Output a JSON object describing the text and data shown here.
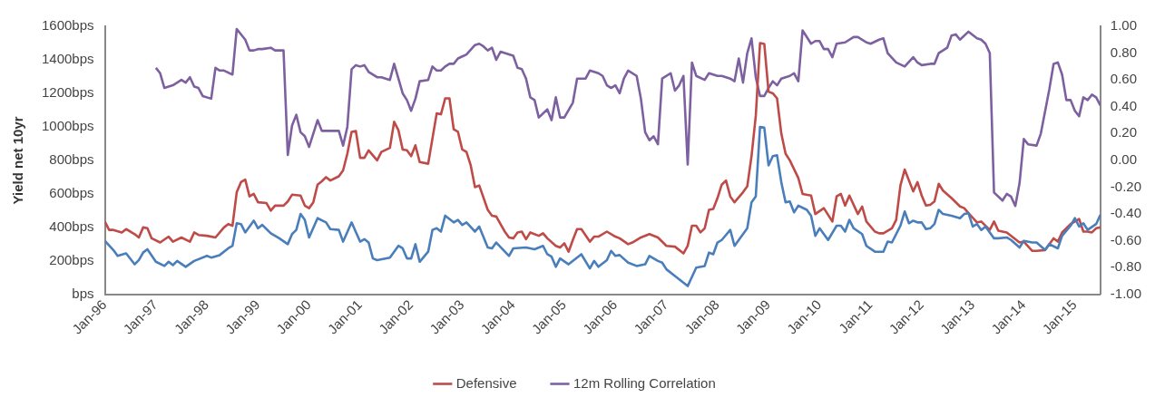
{
  "chart_data": {
    "type": "line",
    "ylabel": "Yield net 10yr",
    "legend": "bottom",
    "xlim": [
      "1996-01",
      "2015-07"
    ],
    "xticks": [
      {
        "value": "1996-01",
        "label": "Jan-96"
      },
      {
        "value": "1997-01",
        "label": "Jan-97"
      },
      {
        "value": "1998-01",
        "label": "Jan-98"
      },
      {
        "value": "1999-01",
        "label": "Jan-99"
      },
      {
        "value": "2000-01",
        "label": "Jan-00"
      },
      {
        "value": "2001-01",
        "label": "Jan-01"
      },
      {
        "value": "2002-01",
        "label": "Jan-02"
      },
      {
        "value": "2003-01",
        "label": "Jan-03"
      },
      {
        "value": "2004-01",
        "label": "Jan-04"
      },
      {
        "value": "2005-01",
        "label": "Jan-05"
      },
      {
        "value": "2006-01",
        "label": "Jan-06"
      },
      {
        "value": "2007-01",
        "label": "Jan-07"
      },
      {
        "value": "2008-01",
        "label": "Jan-08"
      },
      {
        "value": "2009-01",
        "label": "Jan-09"
      },
      {
        "value": "2010-01",
        "label": "Jan-10"
      },
      {
        "value": "2011-01",
        "label": "Jan-11"
      },
      {
        "value": "2012-01",
        "label": "Jan-12"
      },
      {
        "value": "2013-01",
        "label": "Jan-13"
      },
      {
        "value": "2014-01",
        "label": "Jan-14"
      },
      {
        "value": "2015-01",
        "label": "Jan-15"
      }
    ],
    "ylim": [
      0,
      1600
    ],
    "yticks": [
      {
        "value": 0,
        "label": "bps"
      },
      {
        "value": 200,
        "label": "200bps"
      },
      {
        "value": 400,
        "label": "400bps"
      },
      {
        "value": 600,
        "label": "600bps"
      },
      {
        "value": 800,
        "label": "800bps"
      },
      {
        "value": 1000,
        "label": "1000bps"
      },
      {
        "value": 1200,
        "label": "1200bps"
      },
      {
        "value": 1400,
        "label": "1400bps"
      },
      {
        "value": 1600,
        "label": "1600bps"
      }
    ],
    "y2lim": [
      -1,
      1
    ],
    "y2ticks": [
      {
        "value": 1,
        "label": "1.00"
      },
      {
        "value": 0.8,
        "label": "0.80"
      },
      {
        "value": 0.6,
        "label": "0.60"
      },
      {
        "value": 0.4,
        "label": "0.40"
      },
      {
        "value": 0.2,
        "label": "0.20"
      },
      {
        "value": 0,
        "label": "0.00"
      },
      {
        "value": -0.2,
        "label": "-0.20"
      },
      {
        "value": -0.4,
        "label": "-0.40"
      },
      {
        "value": -0.6,
        "label": "-0.60"
      },
      {
        "value": -0.8,
        "label": "-0.80"
      },
      {
        "value": -1,
        "label": "-1.00"
      }
    ],
    "series": [
      {
        "color": "#4a7ebb",
        "x": [
          "1996-01",
          "1996-03",
          "1996-04",
          "1996-06",
          "1996-08",
          "1996-09",
          "1996-10",
          "1996-11",
          "1997-01",
          "1997-03",
          "1997-04",
          "1997-05",
          "1997-06",
          "1997-08",
          "1997-10",
          "1998-01",
          "1998-02",
          "1998-04",
          "1998-06",
          "1998-07",
          "1998-08",
          "1998-09",
          "1998-10",
          "1998-12",
          "1999-01",
          "1999-02",
          "1999-04",
          "1999-06",
          "1999-08",
          "1999-09",
          "1999-10",
          "1999-11",
          "1999-12",
          "2000-01",
          "2000-03",
          "2000-05",
          "2000-06",
          "2000-08",
          "2000-09",
          "2000-11",
          "2001-01",
          "2001-02",
          "2001-03",
          "2001-04",
          "2001-05",
          "2001-08",
          "2001-10",
          "2001-11",
          "2001-12",
          "2002-01",
          "2002-02",
          "2002-03",
          "2002-05",
          "2002-06",
          "2002-07",
          "2002-08",
          "2002-09",
          "2002-11",
          "2002-12",
          "2003-01",
          "2003-02",
          "2003-04",
          "2003-05",
          "2003-07",
          "2003-08",
          "2003-09",
          "2003-12",
          "2004-01",
          "2004-04",
          "2004-06",
          "2004-08",
          "2004-09",
          "2004-10",
          "2004-11",
          "2004-12",
          "2005-02",
          "2005-05",
          "2005-07",
          "2005-08",
          "2005-09",
          "2005-11",
          "2005-12",
          "2006-01",
          "2006-02",
          "2006-04",
          "2006-06",
          "2006-08",
          "2006-09",
          "2006-11",
          "2006-12",
          "2007-01",
          "2007-03",
          "2007-06",
          "2007-08",
          "2007-10",
          "2007-11",
          "2007-12",
          "2008-01",
          "2008-02",
          "2008-04",
          "2008-05",
          "2008-08",
          "2008-09",
          "2008-10",
          "2008-11",
          "2008-12",
          "2009-01",
          "2009-02",
          "2009-03",
          "2009-04",
          "2009-05",
          "2009-06",
          "2009-07",
          "2009-08",
          "2009-10",
          "2009-11",
          "2009-12",
          "2010-01",
          "2010-03",
          "2010-05",
          "2010-06",
          "2010-07",
          "2010-08",
          "2010-09",
          "2010-11",
          "2010-12",
          "2011-02",
          "2011-04",
          "2011-05",
          "2011-06",
          "2011-08",
          "2011-09",
          "2011-10",
          "2011-11",
          "2011-12",
          "2012-01",
          "2012-02",
          "2012-03",
          "2012-04",
          "2012-05",
          "2012-06",
          "2012-08",
          "2012-10",
          "2012-11",
          "2012-12",
          "2013-01",
          "2013-02",
          "2013-03",
          "2013-04",
          "2013-06",
          "2013-07",
          "2013-09",
          "2013-10",
          "2013-12",
          "2014-01",
          "2014-03",
          "2014-04",
          "2014-06",
          "2014-07",
          "2014-09",
          "2014-10",
          "2014-12",
          "2015-01",
          "2015-02",
          "2015-03",
          "2015-04",
          "2015-06",
          "2015-07"
        ],
        "values": [
          320,
          265,
          230,
          245,
          180,
          205,
          250,
          270,
          195,
          170,
          195,
          175,
          200,
          165,
          200,
          230,
          220,
          235,
          275,
          290,
          425,
          420,
          370,
          440,
          395,
          415,
          365,
          335,
          300,
          360,
          385,
          480,
          445,
          340,
          455,
          430,
          390,
          385,
          315,
          430,
          315,
          330,
          310,
          215,
          205,
          220,
          290,
          275,
          215,
          215,
          300,
          195,
          255,
          385,
          395,
          375,
          470,
          430,
          445,
          415,
          430,
          375,
          405,
          280,
          275,
          310,
          230,
          275,
          280,
          270,
          290,
          240,
          225,
          165,
          215,
          180,
          240,
          155,
          200,
          165,
          205,
          260,
          230,
          235,
          190,
          170,
          180,
          230,
          200,
          190,
          150,
          110,
          50,
          160,
          170,
          250,
          240,
          310,
          325,
          385,
          290,
          395,
          550,
          585,
          1000,
          995,
          770,
          825,
          830,
          670,
          550,
          555,
          490,
          530,
          505,
          470,
          350,
          395,
          325,
          410,
          410,
          375,
          445,
          395,
          360,
          290,
          255,
          255,
          315,
          310,
          410,
          495,
          425,
          440,
          430,
          430,
          390,
          395,
          420,
          505,
          480,
          470,
          455,
          480,
          485,
          405,
          420,
          385,
          405,
          335,
          335,
          340,
          325,
          280,
          320,
          310,
          310,
          265,
          300,
          275,
          350,
          410,
          455,
          405,
          425,
          385,
          420,
          475
        ]
      },
      {
        "name": "Defensive",
        "color": "#be4b48",
        "x": [
          "1996-01",
          "1996-02",
          "1996-03",
          "1996-05",
          "1996-06",
          "1996-08",
          "1996-09",
          "1996-10",
          "1996-11",
          "1996-12",
          "1997-02",
          "1997-04",
          "1997-05",
          "1997-07",
          "1997-09",
          "1997-10",
          "1997-11",
          "1998-01",
          "1998-03",
          "1998-05",
          "1998-06",
          "1998-07",
          "1998-08",
          "1998-09",
          "1998-10",
          "1998-11",
          "1998-12",
          "1999-01",
          "1999-03",
          "1999-04",
          "1999-05",
          "1999-07",
          "1999-08",
          "1999-09",
          "1999-11",
          "1999-12",
          "2000-01",
          "2000-02",
          "2000-03",
          "2000-04",
          "2000-05",
          "2000-06",
          "2000-08",
          "2000-09",
          "2000-10",
          "2000-11",
          "2000-12",
          "2001-01",
          "2001-02",
          "2001-03",
          "2001-05",
          "2001-06",
          "2001-08",
          "2001-09",
          "2001-10",
          "2001-11",
          "2001-12",
          "2002-01",
          "2002-02",
          "2002-03",
          "2002-05",
          "2002-06",
          "2002-07",
          "2002-08",
          "2002-09",
          "2002-10",
          "2002-11",
          "2002-12",
          "2003-01",
          "2003-02",
          "2003-03",
          "2003-04",
          "2003-05",
          "2003-07",
          "2003-08",
          "2003-09",
          "2003-11",
          "2003-12",
          "2004-01",
          "2004-02",
          "2004-03",
          "2004-04",
          "2004-05",
          "2004-07",
          "2004-08",
          "2004-09",
          "2004-11",
          "2004-12",
          "2005-01",
          "2005-02",
          "2005-03",
          "2005-04",
          "2005-05",
          "2005-07",
          "2005-08",
          "2005-09",
          "2005-11",
          "2006-01",
          "2006-02",
          "2006-04",
          "2006-05",
          "2006-07",
          "2006-09",
          "2006-11",
          "2007-01",
          "2007-03",
          "2007-05",
          "2007-06",
          "2007-07",
          "2007-08",
          "2007-09",
          "2007-10",
          "2007-11",
          "2007-12",
          "2008-01",
          "2008-02",
          "2008-03",
          "2008-04",
          "2008-05",
          "2008-07",
          "2008-08",
          "2008-09",
          "2008-10",
          "2008-11",
          "2008-12",
          "2009-01",
          "2009-02",
          "2009-03",
          "2009-04",
          "2009-05",
          "2009-06",
          "2009-08",
          "2009-09",
          "2009-11",
          "2009-12",
          "2010-02",
          "2010-04",
          "2010-05",
          "2010-06",
          "2010-07",
          "2010-08",
          "2010-10",
          "2010-11",
          "2010-12",
          "2011-02",
          "2011-03",
          "2011-04",
          "2011-06",
          "2011-07",
          "2011-08",
          "2011-09",
          "2011-11",
          "2011-12",
          "2012-01",
          "2012-02",
          "2012-03",
          "2012-04",
          "2012-05",
          "2012-06",
          "2012-08",
          "2012-10",
          "2012-11",
          "2012-12",
          "2013-02",
          "2013-03",
          "2013-05",
          "2013-06",
          "2013-07",
          "2013-09",
          "2013-12",
          "2014-01",
          "2014-03",
          "2014-04",
          "2014-06",
          "2014-08",
          "2014-09",
          "2014-10",
          "2014-12",
          "2015-02",
          "2015-03",
          "2015-04",
          "2015-05",
          "2015-06",
          "2015-07"
        ],
        "values": [
          435,
          385,
          385,
          370,
          390,
          360,
          340,
          400,
          395,
          335,
          310,
          345,
          315,
          340,
          315,
          370,
          355,
          350,
          340,
          400,
          420,
          410,
          610,
          670,
          685,
          585,
          600,
          550,
          545,
          500,
          530,
          530,
          555,
          595,
          590,
          530,
          515,
          550,
          655,
          675,
          700,
          680,
          705,
          740,
          840,
          970,
          975,
          815,
          815,
          860,
          800,
          850,
          875,
          1030,
          980,
          865,
          860,
          825,
          890,
          790,
          780,
          930,
          1080,
          1075,
          1170,
          1170,
          985,
          970,
          865,
          850,
          770,
          640,
          650,
          505,
          470,
          465,
          375,
          340,
          335,
          370,
          375,
          330,
          370,
          350,
          365,
          335,
          290,
          280,
          305,
          255,
          325,
          390,
          390,
          315,
          345,
          345,
          375,
          345,
          335,
          300,
          310,
          340,
          360,
          340,
          290,
          285,
          245,
          290,
          410,
          410,
          370,
          395,
          505,
          510,
          575,
          655,
          680,
          585,
          550,
          610,
          645,
          825,
          1065,
          1500,
          1495,
          1210,
          1200,
          1170,
          960,
          840,
          800,
          695,
          600,
          590,
          480,
          515,
          435,
          585,
          600,
          530,
          590,
          480,
          525,
          435,
          375,
          365,
          365,
          395,
          445,
          650,
          745,
          615,
          670,
          590,
          530,
          535,
          555,
          660,
          620,
          575,
          525,
          515,
          485,
          430,
          435,
          385,
          435,
          380,
          370,
          310,
          315,
          260,
          260,
          265,
          335,
          315,
          370,
          420,
          450,
          375,
          375,
          370,
          395,
          400
        ]
      },
      {
        "name": "12m Rolling Correlation",
        "color": "#7d60a0",
        "axis": "y2",
        "x": [
          "1997-01",
          "1997-02",
          "1997-03",
          "1997-05",
          "1997-07",
          "1997-08",
          "1997-09",
          "1997-10",
          "1997-11",
          "1997-12",
          "1998-02",
          "1998-03",
          "1998-04",
          "1998-05",
          "1998-07",
          "1998-08",
          "1998-10",
          "1998-11",
          "1998-12",
          "1999-01",
          "1999-02",
          "1999-04",
          "1999-05",
          "1999-07",
          "1999-08",
          "1999-09",
          "1999-10",
          "1999-11",
          "1999-12",
          "2000-01",
          "2000-03",
          "2000-04",
          "2000-05",
          "2000-07",
          "2000-08",
          "2000-09",
          "2000-10",
          "2000-11",
          "2000-12",
          "2001-01",
          "2001-02",
          "2001-03",
          "2001-05",
          "2001-06",
          "2001-08",
          "2001-09",
          "2001-10",
          "2001-11",
          "2001-12",
          "2002-01",
          "2002-02",
          "2002-03",
          "2002-05",
          "2002-06",
          "2002-07",
          "2002-08",
          "2002-09",
          "2002-10",
          "2002-11",
          "2002-12",
          "2003-02",
          "2003-04",
          "2003-05",
          "2003-06",
          "2003-07",
          "2003-08",
          "2003-09",
          "2003-10",
          "2004-01",
          "2004-02",
          "2004-03",
          "2004-04",
          "2004-05",
          "2004-06",
          "2004-07",
          "2004-09",
          "2004-10",
          "2004-11",
          "2004-12",
          "2005-01",
          "2005-03",
          "2005-04",
          "2005-06",
          "2005-07",
          "2005-09",
          "2005-10",
          "2005-11",
          "2005-12",
          "2006-01",
          "2006-02",
          "2006-03",
          "2006-04",
          "2006-06",
          "2006-07",
          "2006-08",
          "2006-09",
          "2006-10",
          "2006-11",
          "2006-12",
          "2007-02",
          "2007-03",
          "2007-04",
          "2007-05",
          "2007-06",
          "2007-07",
          "2007-08",
          "2007-10",
          "2007-11",
          "2008-01",
          "2008-02",
          "2008-04",
          "2008-05",
          "2008-06",
          "2008-07",
          "2008-08",
          "2008-09",
          "2008-10",
          "2008-11",
          "2008-12",
          "2009-01",
          "2009-02",
          "2009-03",
          "2009-04",
          "2009-06",
          "2009-07",
          "2009-08",
          "2009-09",
          "2009-11",
          "2009-12",
          "2010-01",
          "2010-02",
          "2010-03",
          "2010-04",
          "2010-05",
          "2010-07",
          "2010-09",
          "2010-10",
          "2010-12",
          "2011-01",
          "2011-03",
          "2011-04",
          "2011-05",
          "2011-07",
          "2011-09",
          "2011-11",
          "2011-12",
          "2012-01",
          "2012-03",
          "2012-04",
          "2012-05",
          "2012-07",
          "2012-08",
          "2012-09",
          "2012-10",
          "2012-12",
          "2013-02",
          "2013-03",
          "2013-04",
          "2013-05",
          "2013-06",
          "2013-08",
          "2013-09",
          "2013-10",
          "2013-11",
          "2013-12",
          "2014-01",
          "2014-02",
          "2014-04",
          "2014-05",
          "2014-07",
          "2014-08",
          "2014-09",
          "2014-10",
          "2014-11",
          "2014-12",
          "2015-01",
          "2015-02",
          "2015-03",
          "2015-04",
          "2015-05",
          "2015-06",
          "2015-07"
        ],
        "values": [
          0.69,
          0.65,
          0.54,
          0.56,
          0.6,
          0.58,
          0.62,
          0.55,
          0.54,
          0.48,
          0.46,
          0.69,
          0.67,
          0.67,
          0.64,
          0.98,
          0.9,
          0.82,
          0.82,
          0.83,
          0.83,
          0.84,
          0.82,
          0.82,
          0.04,
          0.26,
          0.34,
          0.21,
          0.18,
          0.1,
          0.3,
          0.22,
          0.22,
          0.22,
          0.22,
          0.11,
          0.25,
          0.68,
          0.71,
          0.7,
          0.71,
          0.66,
          0.62,
          0.62,
          0.6,
          0.72,
          0.61,
          0.5,
          0.45,
          0.37,
          0.46,
          0.59,
          0.6,
          0.7,
          0.67,
          0.67,
          0.7,
          0.72,
          0.72,
          0.76,
          0.79,
          0.86,
          0.87,
          0.85,
          0.82,
          0.84,
          0.75,
          0.81,
          0.78,
          0.69,
          0.68,
          0.61,
          0.47,
          0.45,
          0.32,
          0.38,
          0.3,
          0.47,
          0.32,
          0.32,
          0.43,
          0.61,
          0.61,
          0.67,
          0.65,
          0.63,
          0.56,
          0.54,
          0.56,
          0.5,
          0.61,
          0.67,
          0.63,
          0.46,
          0.21,
          0.15,
          0.18,
          0.12,
          0.61,
          0.65,
          0.52,
          0.56,
          0.63,
          -0.03,
          0.73,
          0.63,
          0.6,
          0.65,
          0.63,
          0.63,
          0.61,
          0.59,
          0.76,
          0.58,
          0.8,
          0.91,
          0.62,
          0.48,
          0.48,
          0.54,
          0.59,
          0.56,
          0.61,
          0.63,
          0.65,
          0.59,
          0.97,
          0.87,
          0.89,
          0.89,
          0.83,
          0.83,
          0.77,
          0.87,
          0.88,
          0.92,
          0.92,
          0.88,
          0.87,
          0.9,
          0.91,
          0.8,
          0.73,
          0.7,
          0.77,
          0.73,
          0.71,
          0.72,
          0.72,
          0.8,
          0.84,
          0.93,
          0.94,
          0.9,
          0.96,
          0.91,
          0.9,
          0.87,
          0.8,
          -0.24,
          -0.3,
          -0.25,
          -0.27,
          -0.34,
          -0.17,
          0.16,
          0.12,
          0.11,
          0.2,
          0.53,
          0.72,
          0.73,
          0.64,
          0.45,
          0.45,
          0.37,
          0.33,
          0.47,
          0.45,
          0.49,
          0.47,
          0.41
        ]
      }
    ]
  }
}
